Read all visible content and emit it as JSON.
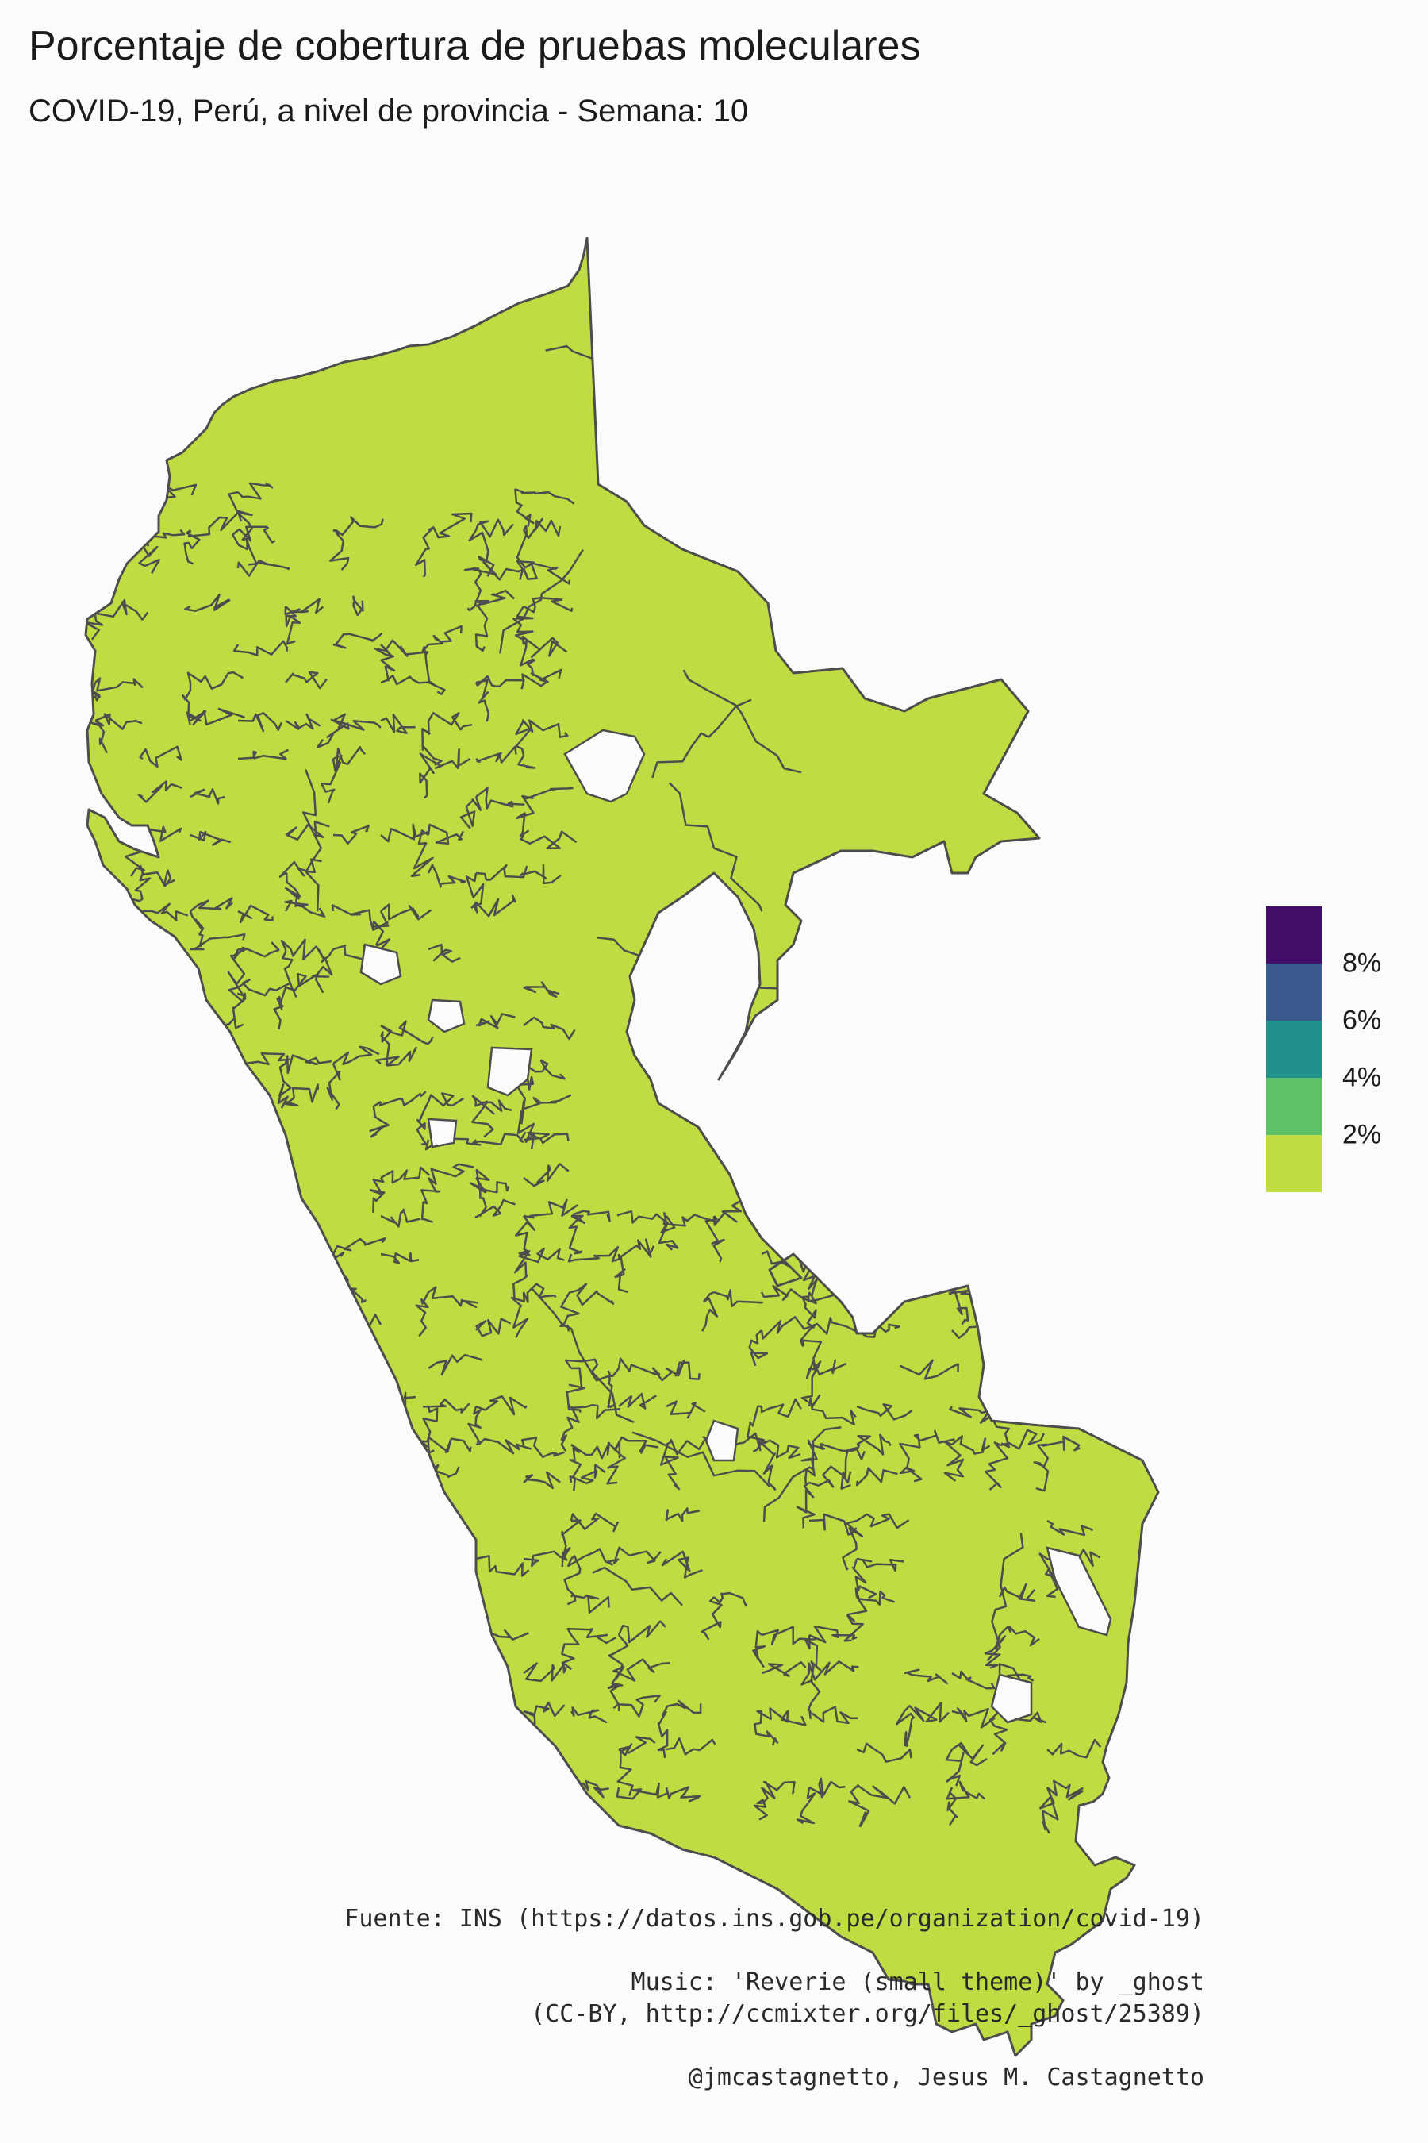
{
  "title": "Porcentaje de cobertura de pruebas moleculares",
  "subtitle": "COVID-19, Perú, a nivel de provincia - Semana: 10",
  "map": {
    "country": "Perú",
    "level": "provincia",
    "fill_color": "#bfdd42",
    "border_color": "#4d4d4d"
  },
  "legend": {
    "colors": [
      "#440f6a",
      "#3b5b8f",
      "#21918c",
      "#5cc167",
      "#bfdd42"
    ],
    "labels": [
      "8%",
      "6%",
      "4%",
      "2%"
    ]
  },
  "captions": {
    "source": "Fuente: INS (https://datos.ins.gob.pe/organization/covid-19)",
    "music_line1": "Music: 'Reverie (small theme)' by _ghost",
    "music_line2": "(CC-BY, http://ccmixter.org/files/_ghost/25389)",
    "credit": "@jmcastagnetto, Jesus M. Castagnetto"
  }
}
